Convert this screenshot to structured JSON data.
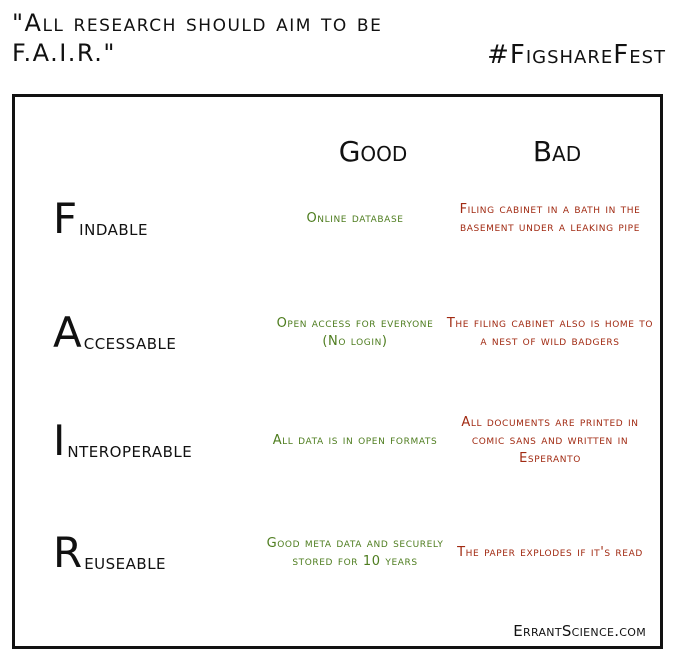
{
  "header": {
    "quote": "\"All research should aim to be F.A.I.R.\"",
    "hashtag": "#FigshareFest"
  },
  "table": {
    "good_heading": "Good",
    "bad_heading": "Bad",
    "rows": [
      {
        "initial": "F",
        "rest": "indable",
        "good": "Online database",
        "bad": "Filing cabinet in a bath in the basement under a leaking pipe"
      },
      {
        "initial": "A",
        "rest": "ccessable",
        "good": "Open access for everyone (No login)",
        "bad": "The filing cabinet also is home to a nest of wild badgers"
      },
      {
        "initial": "I",
        "rest": "nteroperable",
        "good": "All data is in open formats",
        "bad": "All documents are printed in comic sans and written in Esperanto"
      },
      {
        "initial": "R",
        "rest": "euseable",
        "good": "Good meta data and securely stored for 10 years",
        "bad": "The paper explodes if it's read"
      }
    ]
  },
  "footer": {
    "credit": "ErrantScience.com"
  },
  "colors": {
    "good": "#4e7d1f",
    "bad": "#a12a12",
    "ink": "#111111"
  }
}
